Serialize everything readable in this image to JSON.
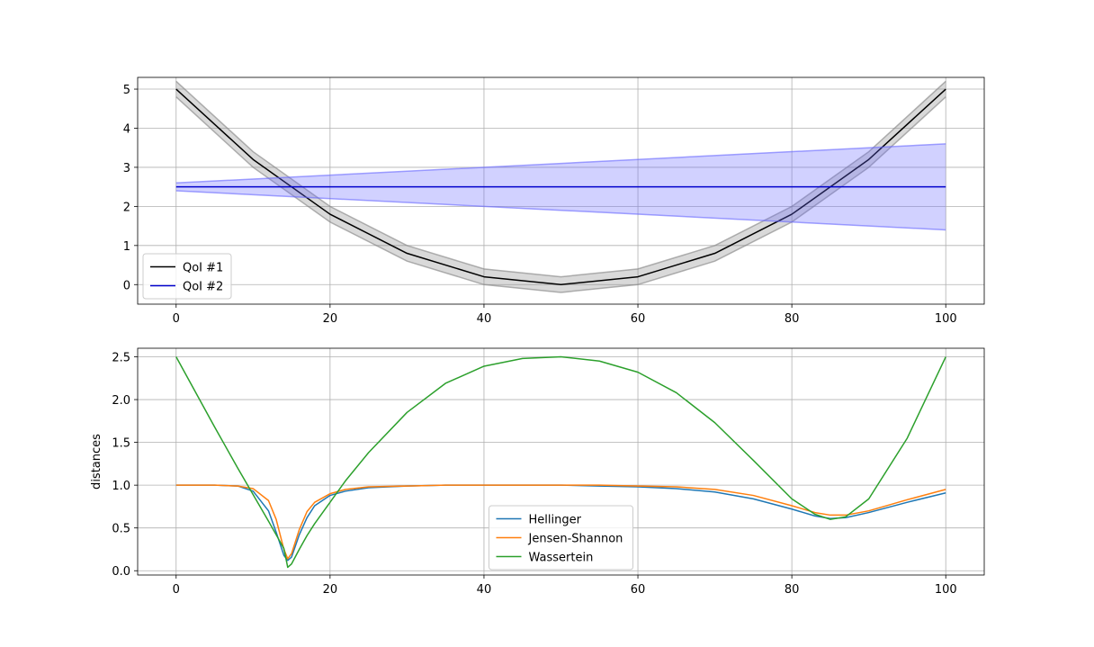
{
  "chart_data": [
    {
      "type": "line",
      "title": "",
      "xlabel": "",
      "ylabel": "",
      "xlim": [
        -5,
        105
      ],
      "ylim": [
        -0.5,
        5.3
      ],
      "xticks": [
        0,
        20,
        40,
        60,
        80,
        100
      ],
      "xtick_labels": [
        "0",
        "20",
        "40",
        "60",
        "80",
        "100"
      ],
      "yticks": [
        0,
        1,
        2,
        3,
        4,
        5
      ],
      "ytick_labels": [
        "0",
        "1",
        "2",
        "3",
        "4",
        "5"
      ],
      "grid": true,
      "legend_position": "lower-left",
      "series": [
        {
          "name": "QoI #1",
          "color": "#000000",
          "band_color": "#808080",
          "x": [
            0,
            10,
            20,
            30,
            40,
            50,
            60,
            70,
            80,
            90,
            100
          ],
          "values": [
            5.0,
            3.2,
            1.8,
            0.8,
            0.2,
            0.0,
            0.2,
            0.8,
            1.8,
            3.2,
            5.0
          ],
          "lower": [
            4.8,
            3.0,
            1.6,
            0.6,
            0.0,
            -0.2,
            0.0,
            0.6,
            1.6,
            3.0,
            4.8
          ],
          "upper": [
            5.2,
            3.4,
            2.0,
            1.0,
            0.4,
            0.2,
            0.4,
            1.0,
            2.0,
            3.4,
            5.2
          ]
        },
        {
          "name": "QoI #2",
          "color": "#0000cc",
          "band_color": "#6666ff",
          "x": [
            0,
            100
          ],
          "values": [
            2.5,
            2.5
          ],
          "lower": [
            2.4,
            1.4
          ],
          "upper": [
            2.6,
            3.6
          ]
        }
      ]
    },
    {
      "type": "line",
      "title": "",
      "xlabel": "",
      "ylabel": "distances",
      "xlim": [
        -5,
        105
      ],
      "ylim": [
        -0.05,
        2.6
      ],
      "xticks": [
        0,
        20,
        40,
        60,
        80,
        100
      ],
      "xtick_labels": [
        "0",
        "20",
        "40",
        "60",
        "80",
        "100"
      ],
      "yticks": [
        0.0,
        0.5,
        1.0,
        1.5,
        2.0,
        2.5
      ],
      "ytick_labels": [
        "0.0",
        "0.5",
        "1.0",
        "1.5",
        "2.0",
        "2.5"
      ],
      "grid": true,
      "legend_position": "lower-center",
      "x": [
        0,
        5,
        8,
        10,
        12,
        13,
        14,
        14.5,
        15,
        16,
        17,
        18,
        20,
        22,
        25,
        30,
        35,
        40,
        45,
        50,
        55,
        60,
        65,
        70,
        75,
        80,
        83,
        85,
        87,
        90,
        95,
        100
      ],
      "series": [
        {
          "name": "Hellinger",
          "color": "#1f77b4",
          "values": [
            1.0,
            1.0,
            0.99,
            0.93,
            0.7,
            0.45,
            0.18,
            0.12,
            0.16,
            0.42,
            0.62,
            0.76,
            0.88,
            0.93,
            0.97,
            0.99,
            1.0,
            1.0,
            1.0,
            1.0,
            0.99,
            0.98,
            0.96,
            0.92,
            0.84,
            0.72,
            0.64,
            0.61,
            0.62,
            0.68,
            0.8,
            0.91
          ]
        },
        {
          "name": "Jensen-Shannon",
          "color": "#ff7f0e",
          "values": [
            1.0,
            1.0,
            0.99,
            0.96,
            0.82,
            0.6,
            0.25,
            0.14,
            0.2,
            0.48,
            0.69,
            0.8,
            0.9,
            0.95,
            0.98,
            0.99,
            1.0,
            1.0,
            1.0,
            1.0,
            1.0,
            0.99,
            0.98,
            0.95,
            0.88,
            0.76,
            0.68,
            0.65,
            0.65,
            0.7,
            0.83,
            0.95
          ]
        },
        {
          "name": "Wassertein",
          "color": "#2ca02c",
          "values": [
            2.5,
            1.68,
            1.2,
            0.89,
            0.58,
            0.42,
            0.26,
            0.04,
            0.08,
            0.25,
            0.41,
            0.55,
            0.8,
            1.05,
            1.38,
            1.85,
            2.19,
            2.39,
            2.48,
            2.5,
            2.45,
            2.32,
            2.08,
            1.73,
            1.29,
            0.84,
            0.66,
            0.6,
            0.63,
            0.84,
            1.55,
            2.5
          ]
        }
      ]
    }
  ]
}
